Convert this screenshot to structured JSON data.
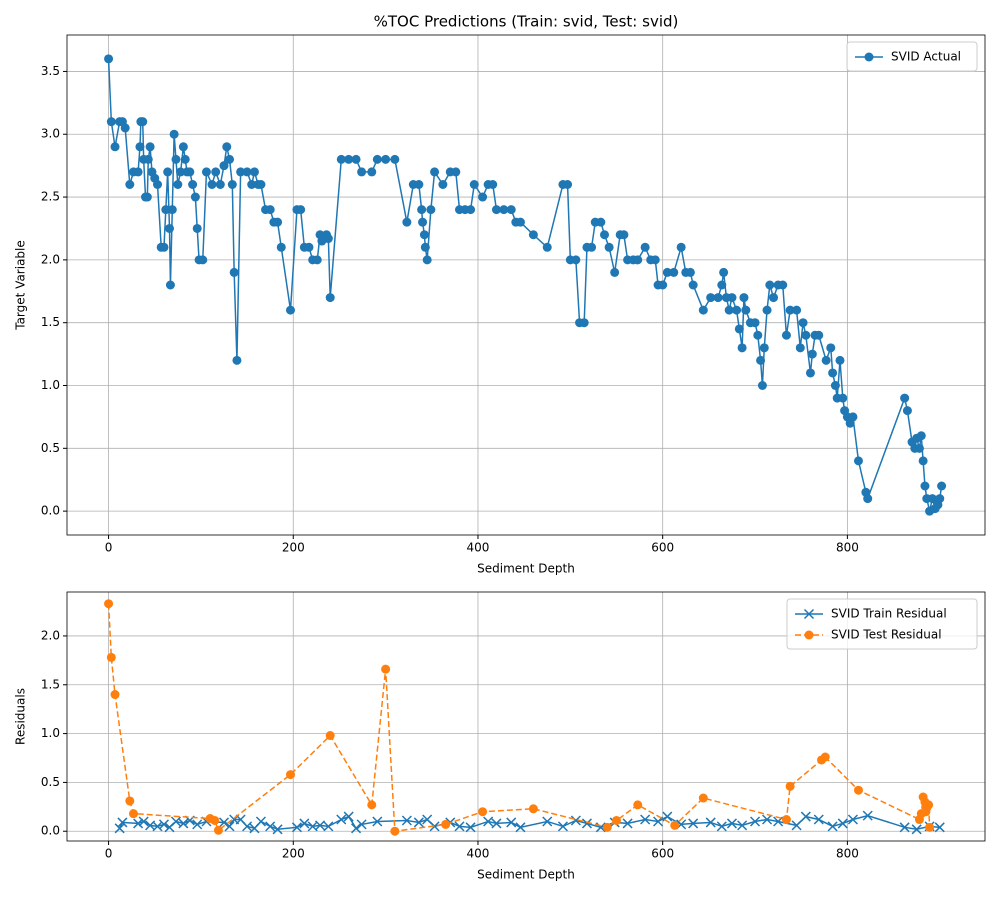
{
  "chart_data": [
    {
      "type": "line",
      "title": "%TOC Predictions (Train: svid, Test: svid)",
      "xlabel": "Sediment Depth",
      "ylabel": "Target Variable",
      "xlim": [
        -45,
        949
      ],
      "ylim": [
        -0.19,
        3.79
      ],
      "xticks": [
        0,
        200,
        400,
        600,
        800
      ],
      "yticks": [
        {
          "value": 0,
          "label": "0.0"
        },
        {
          "value": 0.5,
          "label": "0.5"
        },
        {
          "value": 1,
          "label": "1.0"
        },
        {
          "value": 1.5,
          "label": "1.5"
        },
        {
          "value": 2,
          "label": "2.0"
        },
        {
          "value": 2.5,
          "label": "2.5"
        },
        {
          "value": 3,
          "label": "3.0"
        },
        {
          "value": 3.5,
          "label": "3.5"
        }
      ],
      "grid": true,
      "legend": "upper right",
      "series": [
        {
          "name": "SVID Actual",
          "color": "#1f77b4",
          "marker": "o",
          "linestyle": "-",
          "x": [
            0,
            3,
            7,
            12,
            15,
            18,
            23,
            27,
            32,
            34,
            35,
            37,
            38,
            40,
            42,
            43,
            45,
            47,
            50,
            53,
            57,
            60,
            62,
            64,
            66,
            67,
            69,
            71,
            73,
            75,
            78,
            81,
            83,
            85,
            88,
            91,
            94,
            96,
            98,
            102,
            106,
            112,
            116,
            121,
            125,
            128,
            131,
            134,
            136,
            139,
            143,
            150,
            155,
            158,
            162,
            165,
            170,
            175,
            179,
            183,
            187,
            197,
            204,
            208,
            212,
            217,
            221,
            226,
            229,
            231,
            236,
            238,
            240,
            252,
            260,
            268,
            274,
            285,
            291,
            300,
            310,
            323,
            330,
            336,
            339,
            340,
            342,
            343,
            345,
            349,
            353,
            362,
            370,
            376,
            380,
            386,
            392,
            396,
            405,
            411,
            416,
            420,
            428,
            436,
            441,
            446,
            460,
            475,
            492,
            497,
            500,
            506,
            510,
            515,
            518,
            523,
            527,
            533,
            537,
            542,
            548,
            554,
            558,
            562,
            568,
            573,
            581,
            587,
            592,
            595,
            600,
            605,
            612,
            620,
            625,
            630,
            633,
            644,
            652,
            660,
            664,
            666,
            669,
            672,
            675,
            680,
            683,
            686,
            688,
            690,
            695,
            700,
            703,
            706,
            708,
            710,
            713,
            716,
            720,
            725,
            730,
            734,
            738,
            745,
            749,
            752,
            755,
            760,
            762,
            765,
            769,
            777,
            782,
            784,
            787,
            789,
            792,
            795,
            797,
            800,
            803,
            806,
            812,
            820,
            822,
            862,
            865,
            870,
            873,
            875,
            878,
            880,
            882,
            884,
            886,
            889,
            892,
            895,
            898,
            900,
            902
          ],
          "values": [
            3.6,
            3.1,
            2.9,
            3.1,
            3.1,
            3.05,
            2.6,
            2.7,
            2.7,
            2.9,
            3.1,
            3.1,
            2.8,
            2.5,
            2.5,
            2.8,
            2.9,
            2.7,
            2.65,
            2.6,
            2.1,
            2.1,
            2.4,
            2.7,
            2.25,
            1.8,
            2.4,
            3.0,
            2.8,
            2.6,
            2.7,
            2.9,
            2.8,
            2.7,
            2.7,
            2.6,
            2.5,
            2.25,
            2.0,
            2.0,
            2.7,
            2.6,
            2.7,
            2.6,
            2.75,
            2.9,
            2.8,
            2.6,
            1.9,
            1.2,
            2.7,
            2.7,
            2.6,
            2.7,
            2.6,
            2.6,
            2.4,
            2.4,
            2.3,
            2.3,
            2.1,
            1.6,
            2.4,
            2.4,
            2.1,
            2.1,
            2.0,
            2.0,
            2.2,
            2.15,
            2.2,
            2.17,
            1.7,
            2.8,
            2.8,
            2.8,
            2.7,
            2.7,
            2.8,
            2.8,
            2.8,
            2.3,
            2.6,
            2.6,
            2.4,
            2.3,
            2.2,
            2.1,
            2.0,
            2.4,
            2.7,
            2.6,
            2.7,
            2.7,
            2.4,
            2.4,
            2.4,
            2.6,
            2.5,
            2.6,
            2.6,
            2.4,
            2.4,
            2.4,
            2.3,
            2.3,
            2.2,
            2.1,
            2.6,
            2.6,
            2.0,
            2.0,
            1.5,
            1.5,
            2.1,
            2.1,
            2.3,
            2.3,
            2.2,
            2.1,
            1.9,
            2.2,
            2.2,
            2.0,
            2.0,
            2.0,
            2.1,
            2.0,
            2.0,
            1.8,
            1.8,
            1.9,
            1.9,
            2.1,
            1.9,
            1.9,
            1.8,
            1.6,
            1.7,
            1.7,
            1.8,
            1.9,
            1.7,
            1.6,
            1.7,
            1.6,
            1.45,
            1.3,
            1.7,
            1.6,
            1.5,
            1.5,
            1.4,
            1.2,
            1.0,
            1.3,
            1.6,
            1.8,
            1.7,
            1.8,
            1.8,
            1.4,
            1.6,
            1.6,
            1.3,
            1.5,
            1.4,
            1.1,
            1.25,
            1.4,
            1.4,
            1.2,
            1.3,
            1.1,
            1.0,
            0.9,
            1.2,
            0.9,
            0.8,
            0.75,
            0.7,
            0.75,
            0.4,
            0.15,
            0.1,
            0.9,
            0.8,
            0.55,
            0.5,
            0.58,
            0.5,
            0.6,
            0.4,
            0.2,
            0.1,
            0.0,
            0.1,
            0.02,
            0.05,
            0.1,
            0.2
          ]
        }
      ]
    },
    {
      "type": "line",
      "xlabel": "Sediment Depth",
      "ylabel": "Residuals",
      "xlim": [
        -45,
        949
      ],
      "ylim": [
        -0.1,
        2.45
      ],
      "xticks": [
        0,
        200,
        400,
        600,
        800
      ],
      "yticks": [
        {
          "value": 0,
          "label": "0.0"
        },
        {
          "value": 0.5,
          "label": "0.5"
        },
        {
          "value": 1,
          "label": "1.0"
        },
        {
          "value": 1.5,
          "label": "1.5"
        },
        {
          "value": 2,
          "label": "2.0"
        }
      ],
      "grid": true,
      "legend": "upper right",
      "series": [
        {
          "name": "SVID Train Residual",
          "color": "#1f77b4",
          "marker": "x",
          "linestyle": "-",
          "x": [
            12,
            15,
            32,
            38,
            45,
            53,
            60,
            66,
            73,
            81,
            88,
            96,
            106,
            125,
            131,
            136,
            143,
            150,
            158,
            165,
            175,
            183,
            204,
            212,
            221,
            229,
            238,
            252,
            260,
            268,
            274,
            291,
            323,
            336,
            345,
            353,
            370,
            380,
            392,
            411,
            420,
            436,
            446,
            475,
            492,
            506,
            518,
            533,
            548,
            562,
            581,
            595,
            605,
            620,
            633,
            652,
            664,
            675,
            686,
            700,
            713,
            725,
            745,
            755,
            769,
            784,
            795,
            806,
            822,
            862,
            875,
            889,
            900
          ],
          "values": [
            0.03,
            0.09,
            0.08,
            0.1,
            0.06,
            0.05,
            0.07,
            0.04,
            0.1,
            0.08,
            0.11,
            0.07,
            0.1,
            0.09,
            0.05,
            0.12,
            0.12,
            0.05,
            0.03,
            0.1,
            0.05,
            0.02,
            0.04,
            0.08,
            0.05,
            0.06,
            0.05,
            0.12,
            0.15,
            0.03,
            0.07,
            0.1,
            0.11,
            0.09,
            0.12,
            0.05,
            0.09,
            0.05,
            0.04,
            0.1,
            0.08,
            0.09,
            0.04,
            0.1,
            0.05,
            0.11,
            0.08,
            0.04,
            0.09,
            0.08,
            0.12,
            0.1,
            0.15,
            0.07,
            0.08,
            0.09,
            0.05,
            0.08,
            0.06,
            0.1,
            0.12,
            0.1,
            0.06,
            0.15,
            0.12,
            0.05,
            0.08,
            0.12,
            0.16,
            0.04,
            0.02,
            0.05,
            0.04
          ]
        },
        {
          "name": "SVID Test Residual",
          "color": "#ff7f0e",
          "marker": "o",
          "linestyle": "--",
          "x": [
            0,
            3,
            7,
            23,
            27,
            110,
            115,
            119,
            197,
            240,
            285,
            300,
            310,
            365,
            405,
            460,
            540,
            550,
            573,
            613,
            644,
            734,
            738,
            772,
            776,
            812,
            878,
            880,
            882,
            884,
            885,
            886,
            888,
            889
          ],
          "values": [
            2.33,
            1.78,
            1.4,
            0.31,
            0.18,
            0.13,
            0.11,
            0.01,
            0.58,
            0.98,
            0.27,
            1.66,
            0.0,
            0.07,
            0.2,
            0.23,
            0.04,
            0.11,
            0.27,
            0.06,
            0.34,
            0.12,
            0.46,
            0.73,
            0.76,
            0.42,
            0.12,
            0.18,
            0.35,
            0.3,
            0.2,
            0.24,
            0.27,
            0.04
          ]
        }
      ]
    }
  ]
}
